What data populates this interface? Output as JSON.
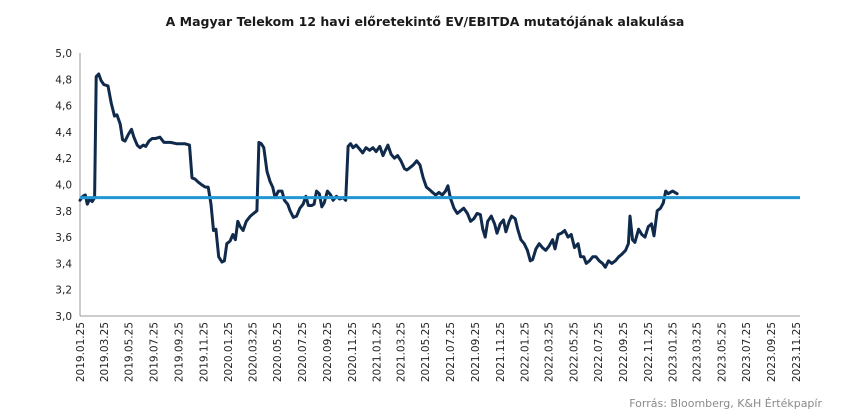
{
  "chart_data": {
    "type": "line",
    "title": "A Magyar Telekom 12 havi előretekintő EV/EBITDA mutatójának alakulása",
    "source": "Forrás: Bloomberg, K&H Értékpapír",
    "xlabel": "",
    "ylabel": "",
    "ylim": [
      3.0,
      5.0
    ],
    "y_ticks": [
      "3,0",
      "3,2",
      "3,4",
      "3,6",
      "3,8",
      "4,0",
      "4,2",
      "4,4",
      "4,6",
      "4,8",
      "5,0"
    ],
    "x_ticks": [
      "2019.01.25",
      "2019.03.25",
      "2019.05.25",
      "2019.07.25",
      "2019.09.25",
      "2019.11.25",
      "2020.01.25",
      "2020.03.25",
      "2020.05.25",
      "2020.07.25",
      "2020.09.25",
      "2020.11.25",
      "2021.01.25",
      "2021.03.25",
      "2021.05.25",
      "2021.07.25",
      "2021.09.25",
      "2021.11.25",
      "2022.01.25",
      "2022.03.25",
      "2022.05.25",
      "2022.07.25",
      "2022.09.25",
      "2022.11.25",
      "2023.01.25",
      "2023.03.25",
      "2023.05.25",
      "2023.07.25",
      "2023.09.25",
      "2023.11.25"
    ],
    "grid": false,
    "legend": "none",
    "series": [
      {
        "color": "#102a4c",
        "points": [
          [
            "2019.01.25",
            3.88
          ],
          [
            "2019.02.01",
            3.91
          ],
          [
            "2019.02.07",
            3.92
          ],
          [
            "2019.02.12",
            3.85
          ],
          [
            "2019.02.18",
            3.89
          ],
          [
            "2019.02.24",
            3.87
          ],
          [
            "2019.03.02",
            3.9
          ],
          [
            "2019.03.06",
            4.82
          ],
          [
            "2019.03.12",
            4.84
          ],
          [
            "2019.03.18",
            4.79
          ],
          [
            "2019.03.25",
            4.76
          ],
          [
            "2019.04.04",
            4.75
          ],
          [
            "2019.04.12",
            4.62
          ],
          [
            "2019.04.20",
            4.52
          ],
          [
            "2019.04.26",
            4.53
          ],
          [
            "2019.05.04",
            4.46
          ],
          [
            "2019.05.10",
            4.34
          ],
          [
            "2019.05.16",
            4.33
          ],
          [
            "2019.05.24",
            4.38
          ],
          [
            "2019.06.01",
            4.42
          ],
          [
            "2019.06.07",
            4.36
          ],
          [
            "2019.06.15",
            4.3
          ],
          [
            "2019.06.22",
            4.28
          ],
          [
            "2019.06.30",
            4.3
          ],
          [
            "2019.07.06",
            4.29
          ],
          [
            "2019.07.14",
            4.33
          ],
          [
            "2019.07.22",
            4.35
          ],
          [
            "2019.07.30",
            4.35
          ],
          [
            "2019.08.10",
            4.36
          ],
          [
            "2019.08.20",
            4.32
          ],
          [
            "2019.09.05",
            4.32
          ],
          [
            "2019.09.20",
            4.31
          ],
          [
            "2019.10.10",
            4.31
          ],
          [
            "2019.10.22",
            4.3
          ],
          [
            "2019.10.28",
            4.05
          ],
          [
            "2019.11.05",
            4.04
          ],
          [
            "2019.11.12",
            4.02
          ],
          [
            "2019.11.20",
            4.0
          ],
          [
            "2019.11.30",
            3.98
          ],
          [
            "2019.12.07",
            3.98
          ],
          [
            "2019.12.14",
            3.85
          ],
          [
            "2019.12.20",
            3.65
          ],
          [
            "2019.12.26",
            3.66
          ],
          [
            "2020.01.02",
            3.45
          ],
          [
            "2020.01.10",
            3.41
          ],
          [
            "2020.01.16",
            3.42
          ],
          [
            "2020.01.22",
            3.55
          ],
          [
            "2020.01.30",
            3.57
          ],
          [
            "2020.02.06",
            3.62
          ],
          [
            "2020.02.12",
            3.58
          ],
          [
            "2020.02.18",
            3.72
          ],
          [
            "2020.02.24",
            3.68
          ],
          [
            "2020.03.02",
            3.65
          ],
          [
            "2020.03.10",
            3.72
          ],
          [
            "2020.03.20",
            3.76
          ],
          [
            "2020.03.28",
            3.78
          ],
          [
            "2020.04.05",
            3.8
          ],
          [
            "2020.04.10",
            4.32
          ],
          [
            "2020.04.16",
            4.31
          ],
          [
            "2020.04.22",
            4.28
          ],
          [
            "2020.04.30",
            4.1
          ],
          [
            "2020.05.08",
            4.02
          ],
          [
            "2020.05.14",
            3.98
          ],
          [
            "2020.05.20",
            3.9
          ],
          [
            "2020.05.28",
            3.95
          ],
          [
            "2020.06.06",
            3.95
          ],
          [
            "2020.06.12",
            3.88
          ],
          [
            "2020.06.20",
            3.85
          ],
          [
            "2020.06.26",
            3.8
          ],
          [
            "2020.07.04",
            3.75
          ],
          [
            "2020.07.12",
            3.76
          ],
          [
            "2020.07.20",
            3.82
          ],
          [
            "2020.07.28",
            3.85
          ],
          [
            "2020.08.04",
            3.91
          ],
          [
            "2020.08.10",
            3.84
          ],
          [
            "2020.08.18",
            3.84
          ],
          [
            "2020.08.24",
            3.85
          ],
          [
            "2020.08.30",
            3.95
          ],
          [
            "2020.09.06",
            3.93
          ],
          [
            "2020.09.12",
            3.83
          ],
          [
            "2020.09.18",
            3.86
          ],
          [
            "2020.09.26",
            3.95
          ],
          [
            "2020.10.04",
            3.92
          ],
          [
            "2020.10.10",
            3.88
          ],
          [
            "2020.10.18",
            3.91
          ],
          [
            "2020.10.26",
            3.89
          ],
          [
            "2020.11.04",
            3.9
          ],
          [
            "2020.11.10",
            3.88
          ],
          [
            "2020.11.16",
            4.29
          ],
          [
            "2020.11.22",
            4.31
          ],
          [
            "2020.11.28",
            4.28
          ],
          [
            "2020.12.06",
            4.3
          ],
          [
            "2020.12.14",
            4.27
          ],
          [
            "2020.12.22",
            4.24
          ],
          [
            "2020.12.30",
            4.28
          ],
          [
            "2021.01.08",
            4.26
          ],
          [
            "2021.01.16",
            4.28
          ],
          [
            "2021.01.24",
            4.25
          ],
          [
            "2021.02.02",
            4.29
          ],
          [
            "2021.02.10",
            4.22
          ],
          [
            "2021.02.16",
            4.26
          ],
          [
            "2021.02.22",
            4.3
          ],
          [
            "2021.03.02",
            4.23
          ],
          [
            "2021.03.10",
            4.2
          ],
          [
            "2021.03.18",
            4.22
          ],
          [
            "2021.03.26",
            4.18
          ],
          [
            "2021.04.04",
            4.12
          ],
          [
            "2021.04.10",
            4.11
          ],
          [
            "2021.04.18",
            4.13
          ],
          [
            "2021.04.26",
            4.15
          ],
          [
            "2021.05.04",
            4.18
          ],
          [
            "2021.05.12",
            4.15
          ],
          [
            "2021.05.20",
            4.05
          ],
          [
            "2021.05.28",
            3.98
          ],
          [
            "2021.06.05",
            3.96
          ],
          [
            "2021.06.12",
            3.94
          ],
          [
            "2021.06.20",
            3.92
          ],
          [
            "2021.06.28",
            3.94
          ],
          [
            "2021.07.06",
            3.92
          ],
          [
            "2021.07.14",
            3.95
          ],
          [
            "2021.07.20",
            3.99
          ],
          [
            "2021.07.26",
            3.9
          ],
          [
            "2021.08.04",
            3.82
          ],
          [
            "2021.08.12",
            3.78
          ],
          [
            "2021.08.20",
            3.8
          ],
          [
            "2021.08.28",
            3.82
          ],
          [
            "2021.09.06",
            3.78
          ],
          [
            "2021.09.14",
            3.72
          ],
          [
            "2021.09.22",
            3.74
          ],
          [
            "2021.09.30",
            3.78
          ],
          [
            "2021.10.08",
            3.77
          ],
          [
            "2021.10.14",
            3.66
          ],
          [
            "2021.10.20",
            3.6
          ],
          [
            "2021.10.26",
            3.72
          ],
          [
            "2021.11.04",
            3.76
          ],
          [
            "2021.11.12",
            3.7
          ],
          [
            "2021.11.18",
            3.63
          ],
          [
            "2021.11.26",
            3.7
          ],
          [
            "2021.12.04",
            3.73
          ],
          [
            "2021.12.10",
            3.64
          ],
          [
            "2021.12.18",
            3.72
          ],
          [
            "2021.12.24",
            3.76
          ],
          [
            "2022.01.02",
            3.74
          ],
          [
            "2022.01.08",
            3.66
          ],
          [
            "2022.01.16",
            3.58
          ],
          [
            "2022.01.24",
            3.55
          ],
          [
            "2022.02.01",
            3.5
          ],
          [
            "2022.02.08",
            3.42
          ],
          [
            "2022.02.14",
            3.43
          ],
          [
            "2022.02.22",
            3.51
          ],
          [
            "2022.03.02",
            3.55
          ],
          [
            "2022.03.10",
            3.52
          ],
          [
            "2022.03.18",
            3.5
          ],
          [
            "2022.03.26",
            3.53
          ],
          [
            "2022.04.04",
            3.58
          ],
          [
            "2022.04.10",
            3.51
          ],
          [
            "2022.04.18",
            3.62
          ],
          [
            "2022.04.26",
            3.63
          ],
          [
            "2022.05.04",
            3.65
          ],
          [
            "2022.05.12",
            3.6
          ],
          [
            "2022.05.20",
            3.62
          ],
          [
            "2022.05.28",
            3.52
          ],
          [
            "2022.06.06",
            3.55
          ],
          [
            "2022.06.12",
            3.45
          ],
          [
            "2022.06.20",
            3.45
          ],
          [
            "2022.06.26",
            3.4
          ],
          [
            "2022.07.04",
            3.42
          ],
          [
            "2022.07.12",
            3.45
          ],
          [
            "2022.07.20",
            3.45
          ],
          [
            "2022.07.28",
            3.42
          ],
          [
            "2022.08.05",
            3.4
          ],
          [
            "2022.08.12",
            3.37
          ],
          [
            "2022.08.20",
            3.42
          ],
          [
            "2022.08.28",
            3.4
          ],
          [
            "2022.09.06",
            3.42
          ],
          [
            "2022.09.14",
            3.45
          ],
          [
            "2022.09.22",
            3.47
          ],
          [
            "2022.10.01",
            3.5
          ],
          [
            "2022.10.08",
            3.55
          ],
          [
            "2022.10.12",
            3.76
          ],
          [
            "2022.10.18",
            3.58
          ],
          [
            "2022.10.24",
            3.56
          ],
          [
            "2022.11.02",
            3.66
          ],
          [
            "2022.11.10",
            3.62
          ],
          [
            "2022.11.18",
            3.6
          ],
          [
            "2022.11.26",
            3.68
          ],
          [
            "2022.12.04",
            3.7
          ],
          [
            "2022.12.10",
            3.61
          ],
          [
            "2022.12.18",
            3.8
          ],
          [
            "2022.12.26",
            3.82
          ],
          [
            "2023.01.02",
            3.86
          ],
          [
            "2023.01.08",
            3.95
          ],
          [
            "2023.01.14",
            3.93
          ],
          [
            "2023.01.25",
            3.95
          ],
          [
            "2023.02.05",
            3.93
          ]
        ]
      }
    ],
    "reference_line": {
      "value": 3.9,
      "color": "#2196d3"
    }
  }
}
